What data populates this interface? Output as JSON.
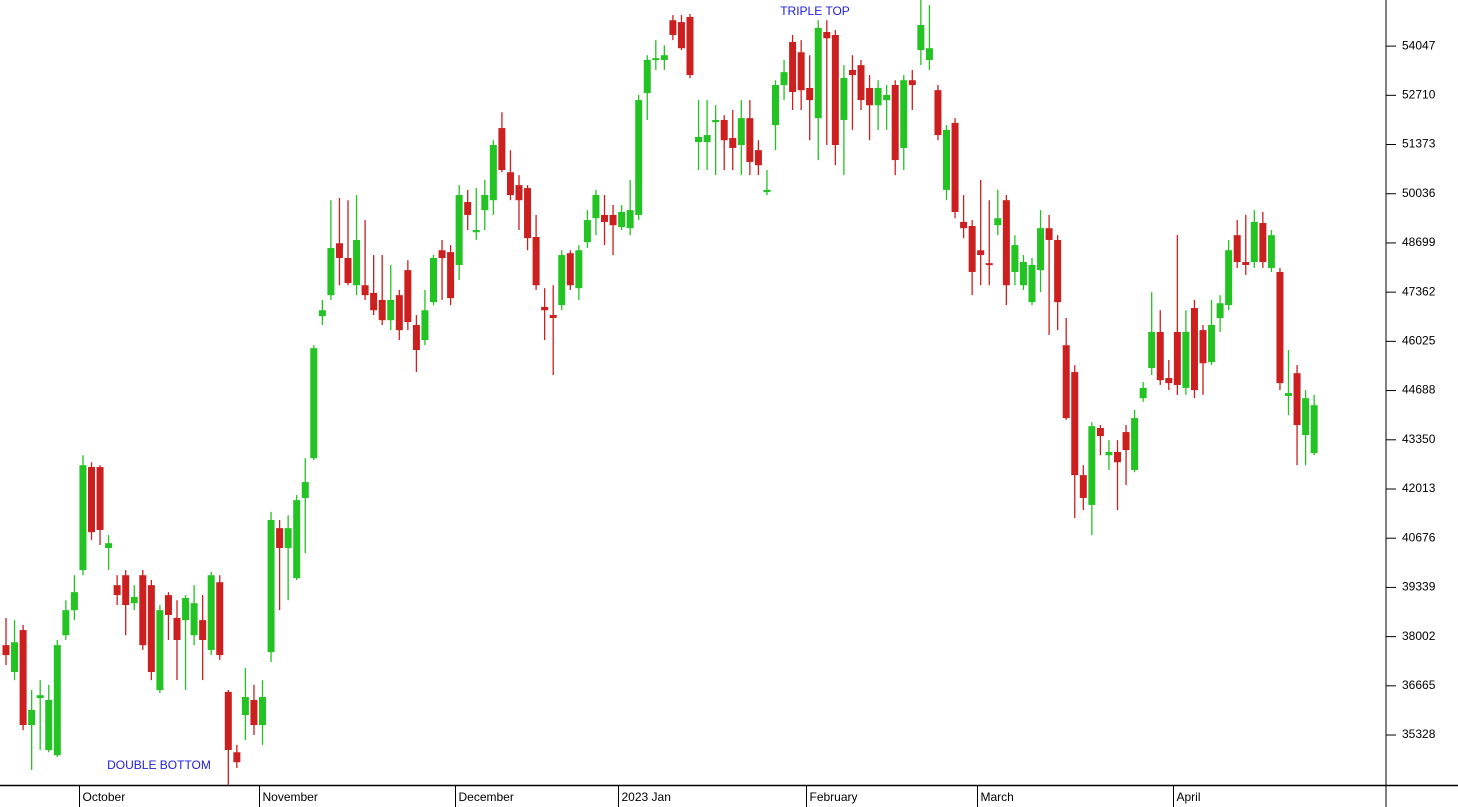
{
  "chart_data": {
    "type": "candlestick",
    "annotations": [
      "TRIPLE TOP",
      "DOUBLE BOTTOM"
    ],
    "up_color": "#22c322",
    "down_color": "#cc1f1f",
    "ylim": [
      33970,
      55300
    ],
    "yticks": [
      35328,
      36665,
      38002,
      39339,
      40676,
      42013,
      43350,
      44688,
      46025,
      47362,
      48699,
      50036,
      51373,
      52710,
      54047
    ],
    "categories": [
      null,
      null,
      null,
      null,
      null,
      null,
      null,
      null,
      null,
      "October",
      null,
      null,
      null,
      null,
      null,
      null,
      null,
      null,
      null,
      null,
      null,
      null,
      null,
      null,
      null,
      null,
      null,
      null,
      null,
      null,
      "November",
      null,
      null,
      null,
      null,
      null,
      null,
      null,
      null,
      null,
      null,
      null,
      null,
      null,
      null,
      null,
      null,
      null,
      null,
      null,
      null,
      null,
      null,
      "December",
      null,
      null,
      null,
      null,
      null,
      null,
      null,
      null,
      null,
      null,
      null,
      null,
      null,
      null,
      null,
      null,
      null,
      null,
      "2023 Jan",
      null,
      null,
      null,
      null,
      null,
      null,
      null,
      null,
      null,
      null,
      null,
      null,
      null,
      null,
      null,
      null,
      null,
      null,
      null,
      null,
      null,
      "February",
      null,
      null,
      null,
      null,
      null,
      null,
      null,
      null,
      null,
      null,
      null,
      null,
      null,
      null,
      null,
      null,
      null,
      null,
      null,
      "March",
      null,
      null,
      null,
      null,
      null,
      null,
      null,
      null,
      null,
      null,
      null,
      null,
      null,
      null,
      null,
      null,
      null,
      null,
      null,
      null,
      null,
      null,
      "April",
      null,
      null,
      null,
      null,
      null,
      null,
      null,
      null,
      null,
      null,
      null,
      null,
      null,
      null,
      null,
      null
    ],
    "open": [
      37770,
      37040,
      38180,
      35600,
      36330,
      34920,
      34780,
      38040,
      38720,
      39810,
      42610,
      42610,
      40410,
      39400,
      39670,
      38910,
      39670,
      39400,
      36550,
      39130,
      38510,
      38450,
      38040,
      38450,
      37640,
      39480,
      36500,
      34860,
      35870,
      36280,
      35600,
      37580,
      40950,
      40410,
      39590,
      41770,
      42850,
      46710,
      47280,
      48690,
      48290,
      47550,
      47550,
      47340,
      47150,
      46600,
      47280,
      47960,
      46470,
      46060,
      47090,
      48500,
      48450,
      48100,
      49810,
      48990,
      49590,
      49860,
      51820,
      50620,
      50270,
      50190,
      48860,
      46960,
      46740,
      47010,
      48420,
      47470,
      48720,
      49370,
      49460,
      49460,
      49130,
      49100,
      49460,
      52770,
      53670,
      53670,
      54750,
      54700,
      54840,
      51440,
      51440,
      51980,
      52040,
      51550,
      51360,
      52090,
      51220,
      50080,
      51900,
      52990,
      54160,
      53880,
      52910,
      52090,
      54430,
      54350,
      52040,
      53400,
      53530,
      52910,
      52440,
      52580,
      52990,
      51280,
      53120,
      53940,
      53670,
      52850,
      50140,
      51960,
      49270,
      49160,
      48500,
      48150,
      49180,
      49860,
      47910,
      47550,
      47090,
      47960,
      49100,
      48780,
      45920,
      45190,
      42390,
      41580,
      43670,
      42930,
      43020,
      43560,
      42530,
      44480,
      45300,
      46280,
      45030,
      46280,
      44760,
      46930,
      46330,
      45460,
      46660,
      47010,
      48910,
      48180,
      48180,
      49240,
      48020,
      47910,
      44540,
      45160,
      43480,
      42990
    ],
    "high": [
      38510,
      38450,
      38320,
      36550,
      36820,
      36690,
      37910,
      38990,
      39670,
      42930,
      42740,
      42660,
      40760,
      39670,
      39810,
      39400,
      39810,
      39540,
      38860,
      39210,
      38990,
      39130,
      39400,
      39130,
      39760,
      39670,
      36550,
      35060,
      37150,
      36690,
      36820,
      41390,
      41170,
      41300,
      41850,
      42850,
      45920,
      47150,
      49860,
      49920,
      49860,
      50000,
      49320,
      48370,
      48370,
      48100,
      47420,
      48230,
      46740,
      47420,
      48370,
      48780,
      48640,
      50270,
      50140,
      50190,
      50410,
      51490,
      52250,
      51220,
      50540,
      50270,
      49460,
      47470,
      47550,
      48500,
      48500,
      48640,
      49590,
      50140,
      50000,
      49730,
      49730,
      50410,
      52720,
      53800,
      54210,
      54070,
      54890,
      54890,
      54920,
      52580,
      52580,
      52440,
      52170,
      52310,
      52580,
      52580,
      51490,
      50680,
      53120,
      53670,
      54350,
      54210,
      53800,
      54750,
      54750,
      54480,
      53530,
      53800,
      53670,
      53260,
      53120,
      52990,
      53120,
      53260,
      53400,
      55300,
      55160,
      52990,
      51900,
      52090,
      50000,
      49320,
      50410,
      49860,
      50140,
      50000,
      48910,
      48370,
      48290,
      49590,
      49460,
      48910,
      46660,
      45380,
      42660,
      43830,
      43750,
      43340,
      43340,
      43750,
      44160,
      44920,
      47360,
      46870,
      45520,
      48910,
      46870,
      47150,
      46470,
      47150,
      47280,
      48780,
      49320,
      49460,
      49590,
      49540,
      49050,
      48020,
      45790,
      45380,
      44700,
      44570
    ],
    "low": [
      37230,
      36820,
      35460,
      34380,
      34920,
      34860,
      34730,
      37910,
      38450,
      39670,
      40630,
      40490,
      39810,
      38860,
      38040,
      38720,
      37640,
      36820,
      36470,
      37910,
      36820,
      36550,
      37770,
      36820,
      37500,
      37370,
      33970,
      34430,
      35190,
      35330,
      35060,
      37310,
      38720,
      38990,
      39540,
      40270,
      42800,
      46470,
      47150,
      47550,
      47550,
      47280,
      47150,
      46740,
      46470,
      46330,
      46060,
      46330,
      45190,
      45920,
      47010,
      47150,
      47010,
      47690,
      49050,
      48780,
      49050,
      49460,
      50620,
      49860,
      49050,
      48500,
      47420,
      46060,
      45110,
      46870,
      47420,
      47150,
      48560,
      48910,
      48640,
      48370,
      49050,
      48910,
      49320,
      52040,
      53400,
      53400,
      54210,
      53940,
      53180,
      50680,
      50680,
      50540,
      50680,
      50680,
      50540,
      50540,
      50540,
      50000,
      51220,
      52580,
      52310,
      52310,
      51490,
      50950,
      51360,
      50810,
      50540,
      51770,
      52310,
      51490,
      51770,
      51770,
      50540,
      50680,
      52310,
      53530,
      53400,
      51490,
      49860,
      49370,
      48830,
      47280,
      47550,
      47550,
      48910,
      47010,
      47550,
      47420,
      47010,
      47360,
      46200,
      46330,
      43890,
      41220,
      41440,
      40760,
      42930,
      42530,
      41440,
      42120,
      42470,
      44380,
      45110,
      44840,
      44700,
      44570,
      44570,
      44480,
      44570,
      45380,
      46280,
      46870,
      48020,
      47830,
      48020,
      48020,
      47910,
      44700,
      44020,
      42660,
      42660,
      42930
    ],
    "close": [
      37500,
      37850,
      35600,
      36010,
      36410,
      36280,
      37770,
      38720,
      39210,
      42660,
      40840,
      40900,
      40540,
      39130,
      38860,
      39080,
      37770,
      37040,
      38720,
      38590,
      37910,
      39050,
      38910,
      37910,
      39670,
      37500,
      34920,
      34590,
      36360,
      35600,
      36360,
      41170,
      40410,
      40950,
      41710,
      42200,
      45840,
      46870,
      48560,
      48290,
      47610,
      48780,
      47280,
      46870,
      46600,
      47150,
      46330,
      46550,
      45790,
      46870,
      48290,
      48290,
      47200,
      50000,
      49460,
      49050,
      50000,
      51360,
      50680,
      50000,
      49860,
      48830,
      47550,
      46870,
      46660,
      48370,
      47550,
      48500,
      49320,
      50000,
      49270,
      49180,
      49540,
      49590,
      52580,
      53670,
      53720,
      53800,
      54350,
      53990,
      53260,
      51580,
      51630,
      52040,
      51490,
      51280,
      52090,
      50900,
      50810,
      50140,
      52990,
      53340,
      52800,
      52850,
      52580,
      54540,
      54260,
      51360,
      53180,
      53260,
      52580,
      52440,
      52910,
      52720,
      50950,
      53120,
      52990,
      54620,
      53990,
      51630,
      51770,
      49540,
      49100,
      47910,
      48370,
      48100,
      49370,
      47550,
      48640,
      48180,
      48100,
      49100,
      48780,
      47090,
      43940,
      42390,
      41770,
      43720,
      43450,
      43020,
      42740,
      43070,
      43940,
      44760,
      46280,
      44970,
      44890,
      44840,
      46280,
      44700,
      45430,
      46470,
      47060,
      48500,
      48180,
      48100,
      49270,
      48180,
      48910,
      44890,
      44620,
      43750,
      44480,
      44290
    ]
  }
}
